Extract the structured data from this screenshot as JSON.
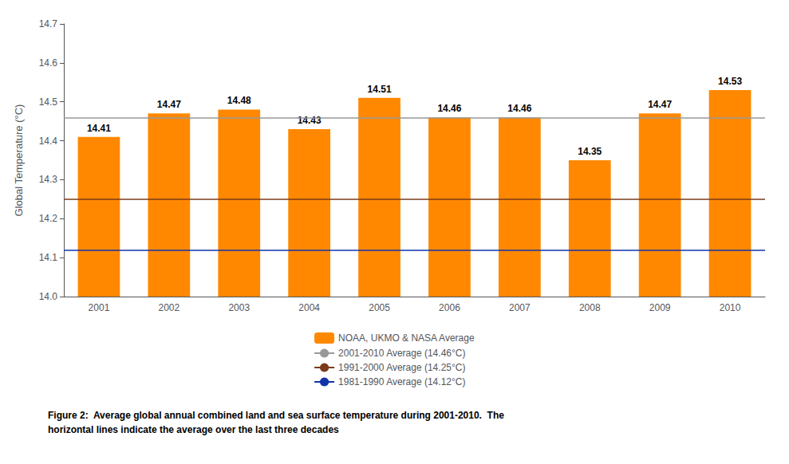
{
  "chart_data": {
    "type": "bar",
    "categories": [
      "2001",
      "2002",
      "2003",
      "2004",
      "2005",
      "2006",
      "2007",
      "2008",
      "2009",
      "2010"
    ],
    "ylabel": "Global Temperature (°C)",
    "caption": "Figure 2:  Average global annual combined land and sea surface temperature during 2001-2010.  The\nhorizontal lines indicate the average over the last three decades",
    "series": [
      {
        "name": "NOAA, UKMO & NASA Average",
        "type": "bar",
        "color": "#FF8800",
        "values": [
          14.41,
          14.47,
          14.48,
          14.43,
          14.51,
          14.46,
          14.46,
          14.35,
          14.47,
          14.53
        ]
      },
      {
        "name": "2001-2010 Average (14.46°C)",
        "type": "hline",
        "color": "#999999",
        "value": 14.46
      },
      {
        "name": "1991-2000 Average (14.25°C)",
        "type": "hline",
        "color": "#7B3B1B",
        "value": 14.25
      },
      {
        "name": "1981-1990 Average (14.12°C)",
        "type": "hline",
        "color": "#1133AA",
        "value": 14.12
      }
    ],
    "ylim": [
      14.0,
      14.7
    ],
    "yticks": [
      {
        "value": 14.0,
        "label": "14.0"
      },
      14.1,
      14.2,
      14.3,
      14.4,
      14.5,
      14.6,
      14.7
    ],
    "grid": false,
    "data_labels": true,
    "legend": "bottom"
  }
}
